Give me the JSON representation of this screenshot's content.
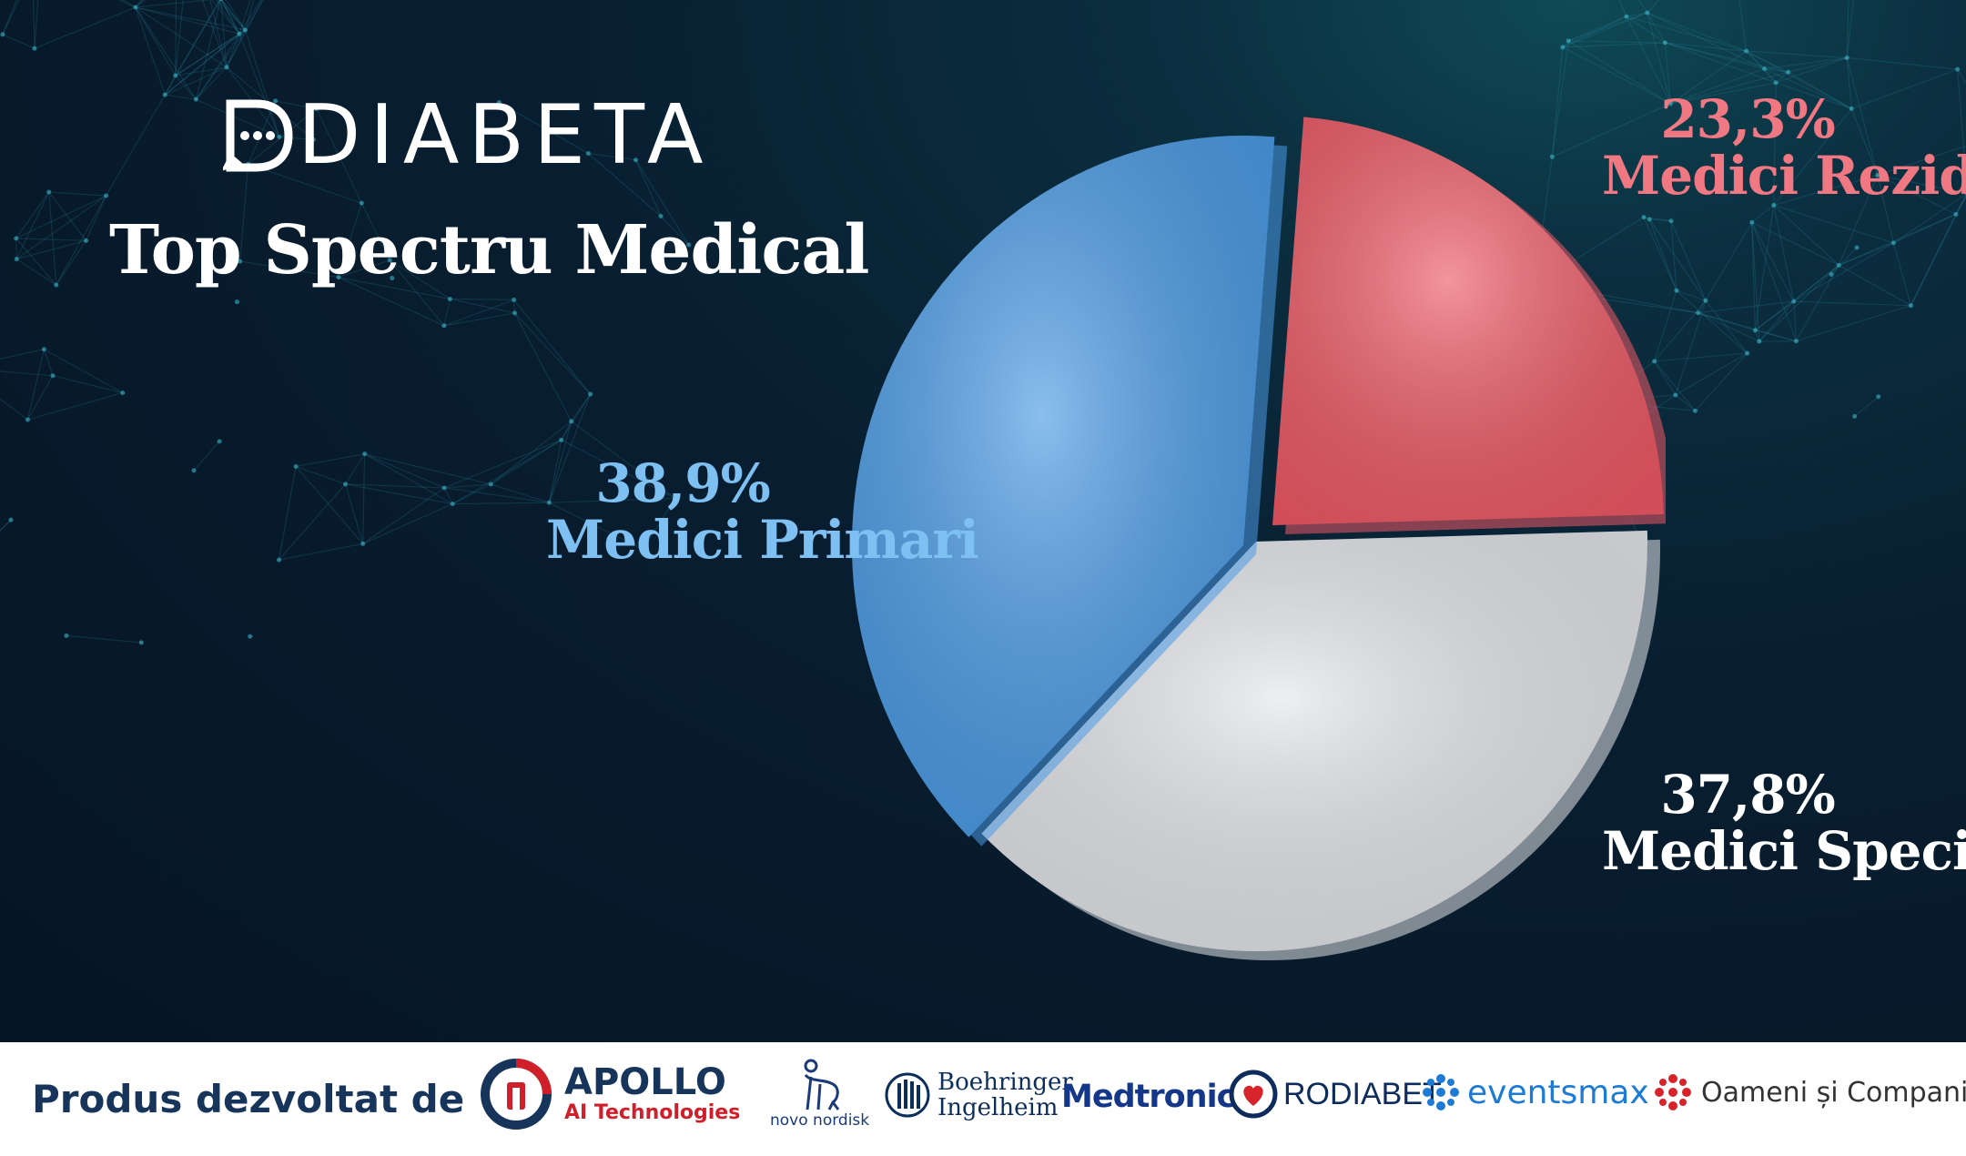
{
  "brand": {
    "logo_text": "DIABETA"
  },
  "chart_data": {
    "type": "pie",
    "title": "Top Spectru Medical",
    "slices": [
      {
        "label": "Medici Primari",
        "value": 38.9,
        "value_text": "38,9%",
        "color": "#4a9be6"
      },
      {
        "label": "Medici Rezidenți",
        "value": 23.3,
        "value_text": "23,3%",
        "color": "#ee5a66"
      },
      {
        "label": "Medici Specialiști",
        "value": 37.8,
        "value_text": "37,8%",
        "color": "#e4e6ea"
      }
    ]
  },
  "footer": {
    "produced_by": "Produs dezvoltat de",
    "apollo_name": "APOLLO",
    "apollo_sub": "AI Technologies",
    "sponsors": {
      "novo": "novo nordisk",
      "boehringer_line1": "Boehringer",
      "boehringer_line2": "Ingelheim",
      "medtronic": "Medtronic",
      "rodiabet": "RODIABET",
      "eventsmax": "eventsmax",
      "oameni": "Oameni și Companii"
    }
  }
}
